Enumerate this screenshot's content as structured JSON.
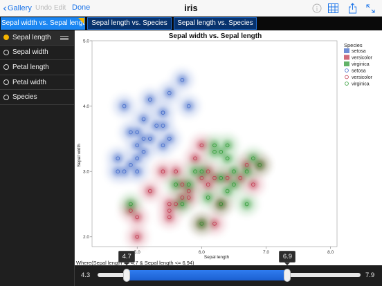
{
  "navbar": {
    "back_label": "Gallery",
    "undo_label": "Undo",
    "edit_label": "Edit",
    "done_label": "Done",
    "title": "iris",
    "icons": [
      "info-icon",
      "table-grid-icon",
      "share-icon",
      "fullscreen-icon"
    ]
  },
  "tabs": [
    {
      "label": "Sepal width vs. Sepal length",
      "active": true
    },
    {
      "label": "Sepal length vs. Species",
      "active": false
    },
    {
      "label": "Sepal length vs. Species",
      "active": false
    }
  ],
  "sidebar": {
    "items": [
      {
        "label": "Sepal length",
        "selected": true
      },
      {
        "label": "Sepal width",
        "selected": false
      },
      {
        "label": "Petal length",
        "selected": false
      },
      {
        "label": "Petal width",
        "selected": false
      },
      {
        "label": "Species",
        "selected": false
      }
    ]
  },
  "filter_text": "Where(Sepal length >= 4.7 & Sepal length <= 6.94)",
  "slider": {
    "min": "4.3",
    "max": "7.9",
    "low": "4.7",
    "high": "6.9",
    "min_value": 4.3,
    "max_value": 7.9,
    "low_value": 4.7,
    "high_value": 6.9
  },
  "colors": {
    "setosa": "#4169c8",
    "versicolor": "#c0394f",
    "virginica": "#2e9a35",
    "accent": "#1b86f2"
  },
  "chart_data": {
    "type": "scatter",
    "title": "Sepal width vs. Sepal length",
    "xlabel": "Sepal length",
    "ylabel": "Sepal width",
    "xlim": [
      4.3,
      8.1
    ],
    "ylim": [
      1.85,
      5.0
    ],
    "xticks": [
      "5.0",
      "6.0",
      "7.0",
      "8.0"
    ],
    "yticks": [
      "2.0",
      "3.0",
      "4.0",
      "5.0"
    ],
    "legend_title": "Species",
    "legend_position": "right",
    "legend_entries": [
      {
        "name": "setosa",
        "kind": "density"
      },
      {
        "name": "versicolor",
        "kind": "density"
      },
      {
        "name": "virginica",
        "kind": "density"
      },
      {
        "name": "setosa",
        "kind": "points"
      },
      {
        "name": "versicolor",
        "kind": "points"
      },
      {
        "name": "virginica",
        "kind": "points"
      }
    ],
    "series": [
      {
        "name": "setosa",
        "points": [
          [
            4.8,
            4.0
          ],
          [
            5.0,
            3.4
          ],
          [
            5.1,
            3.8
          ],
          [
            5.4,
            3.9
          ],
          [
            5.4,
            3.4
          ],
          [
            5.2,
            3.5
          ],
          [
            5.0,
            3.2
          ],
          [
            4.9,
            3.1
          ],
          [
            5.0,
            3.0
          ],
          [
            4.8,
            3.0
          ],
          [
            4.7,
            3.2
          ],
          [
            5.2,
            4.1
          ],
          [
            5.5,
            4.2
          ],
          [
            5.8,
            4.0
          ],
          [
            5.7,
            4.4
          ],
          [
            5.4,
            3.7
          ],
          [
            5.1,
            3.5
          ],
          [
            4.9,
            3.6
          ],
          [
            5.3,
            3.7
          ],
          [
            5.1,
            3.3
          ],
          [
            5.5,
            3.5
          ],
          [
            4.7,
            3.0
          ],
          [
            5.0,
            3.6
          ],
          [
            5.4,
            3.9
          ]
        ]
      },
      {
        "name": "versicolor",
        "points": [
          [
            5.0,
            2.0
          ],
          [
            4.9,
            2.4
          ],
          [
            5.0,
            2.3
          ],
          [
            5.2,
            2.7
          ],
          [
            5.5,
            2.4
          ],
          [
            5.6,
            2.5
          ],
          [
            5.7,
            2.6
          ],
          [
            5.8,
            2.7
          ],
          [
            6.0,
            2.2
          ],
          [
            6.2,
            2.2
          ],
          [
            5.9,
            3.2
          ],
          [
            6.1,
            2.8
          ],
          [
            6.3,
            2.5
          ],
          [
            6.4,
            2.9
          ],
          [
            6.6,
            2.9
          ],
          [
            6.7,
            3.1
          ],
          [
            5.5,
            2.3
          ],
          [
            5.6,
            3.0
          ],
          [
            5.7,
            2.8
          ],
          [
            6.0,
            2.9
          ],
          [
            6.1,
            3.0
          ],
          [
            5.4,
            3.0
          ],
          [
            6.8,
            2.8
          ],
          [
            5.8,
            2.6
          ],
          [
            5.5,
            2.5
          ],
          [
            6.9,
            3.1
          ],
          [
            6.2,
            2.9
          ],
          [
            6.0,
            3.4
          ]
        ]
      },
      {
        "name": "virginica",
        "points": [
          [
            4.9,
            2.5
          ],
          [
            5.6,
            2.8
          ],
          [
            5.8,
            2.8
          ],
          [
            6.0,
            3.0
          ],
          [
            6.2,
            3.3
          ],
          [
            6.3,
            3.3
          ],
          [
            6.4,
            3.2
          ],
          [
            6.5,
            3.0
          ],
          [
            6.7,
            3.0
          ],
          [
            6.8,
            3.2
          ],
          [
            6.9,
            3.1
          ],
          [
            6.3,
            2.9
          ],
          [
            6.4,
            2.7
          ],
          [
            6.5,
            2.8
          ],
          [
            6.7,
            2.5
          ],
          [
            5.9,
            3.0
          ],
          [
            6.1,
            2.6
          ],
          [
            6.0,
            2.2
          ],
          [
            6.2,
            3.4
          ],
          [
            6.4,
            3.4
          ],
          [
            6.3,
            2.5
          ],
          [
            5.7,
            2.5
          ]
        ]
      }
    ]
  }
}
